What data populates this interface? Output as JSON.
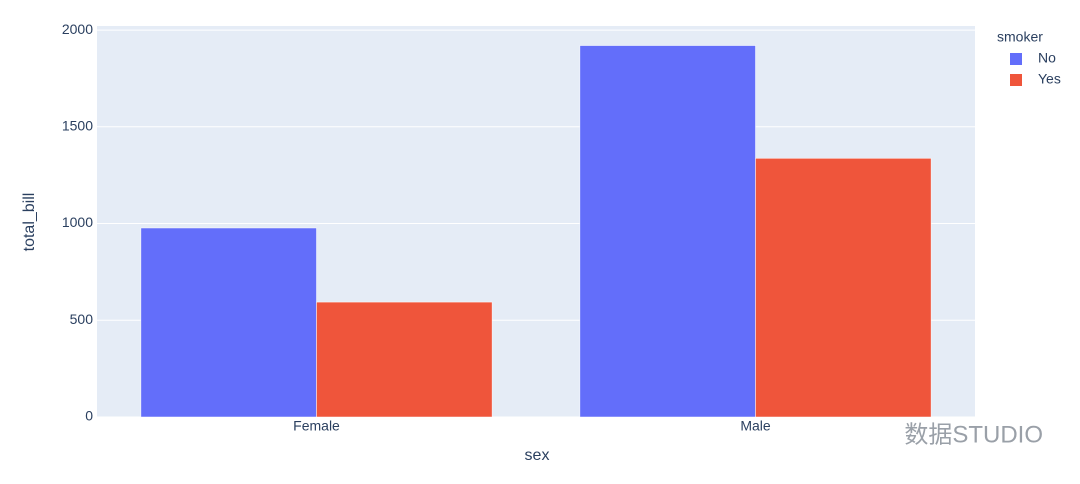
{
  "chart_data": {
    "type": "bar",
    "x_label": "sex",
    "y_label": "total_bill",
    "categories": [
      "Female",
      "Male"
    ],
    "legend_title": "smoker",
    "legend_position": "right",
    "series": [
      {
        "name": "No",
        "color": "#636efa",
        "values": [
          977,
          1920
        ]
      },
      {
        "name": "Yes",
        "color": "#ef553b",
        "values": [
          594,
          1337
        ]
      }
    ],
    "ylim": [
      0,
      2021
    ],
    "yticks": [
      0,
      500,
      1000,
      1500,
      2000
    ],
    "grid": true
  },
  "watermark": "数据STUDIO"
}
